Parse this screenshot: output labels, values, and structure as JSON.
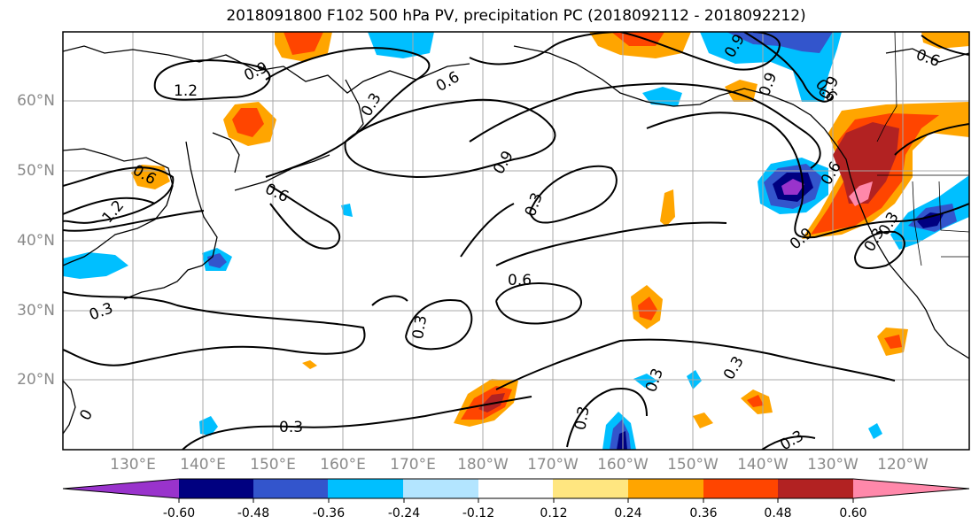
{
  "title": "2018091800 F102 500 hPa PV, precipitation PC (2018092112 - 2018092212)",
  "lat_ticks": [
    "60°N",
    "50°N",
    "40°N",
    "30°N",
    "20°N"
  ],
  "lon_ticks": [
    "130°E",
    "140°E",
    "150°E",
    "160°E",
    "170°E",
    "180°W",
    "170°W",
    "160°W",
    "150°W",
    "140°W",
    "130°W",
    "120°W"
  ],
  "colorbar": {
    "colors": [
      "#9933cc",
      "#000080",
      "#3355cc",
      "#00bfff",
      "#b3e5ff",
      "#ffffff",
      "#ffe680",
      "#ffa500",
      "#ff4500",
      "#b22222",
      "#ff88aa"
    ],
    "labels": [
      "-0.60",
      "-0.48",
      "-0.36",
      "-0.24",
      "-0.12",
      "0.12",
      "0.24",
      "0.36",
      "0.48",
      "0.60"
    ]
  },
  "contour_labels": [
    "1.2",
    "0.9",
    "0.6",
    "0.3",
    "0.6",
    "0.9",
    "0.3",
    "0.6",
    "0.3",
    "0.3",
    "0.3",
    "0.9",
    "0.9",
    "0.6",
    "0.9",
    "1.2",
    "0.3",
    "0.9",
    "0.3",
    "0.3",
    "0.6",
    "0.3",
    "0.6",
    "0.6",
    "0.3",
    "0.3",
    "0"
  ]
}
